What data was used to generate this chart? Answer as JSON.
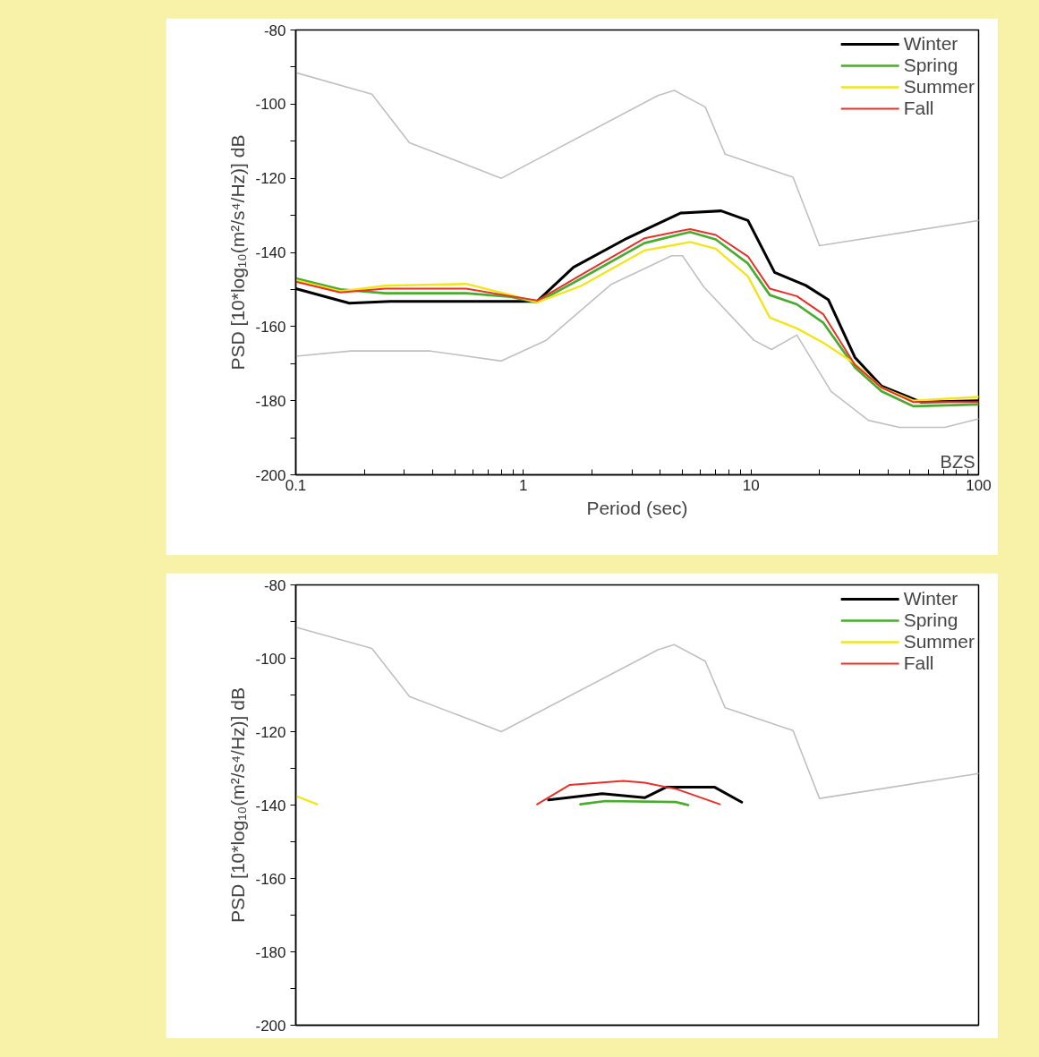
{
  "chart_data": [
    {
      "type": "line",
      "xlabel": "Period (sec)",
      "ylabel": "PSD [10*log₁₀(m²/s⁴/Hz)] dB",
      "log": "x",
      "xlim": [
        0.1,
        100
      ],
      "ylim": [
        -200,
        -80
      ],
      "xticks": [
        0.1,
        {
          "value": 0.2,
          "label": null
        },
        {
          "value": 0.3,
          "label": null
        },
        {
          "value": 0.4,
          "label": null
        },
        {
          "value": 0.5,
          "label": null
        },
        {
          "value": 0.6,
          "label": null
        },
        {
          "value": 0.7,
          "label": null
        },
        {
          "value": 0.8,
          "label": null
        },
        {
          "value": 0.9,
          "label": null
        },
        1,
        {
          "value": 2,
          "label": null
        },
        {
          "value": 3,
          "label": null
        },
        {
          "value": 4,
          "label": null
        },
        {
          "value": 5,
          "label": null
        },
        {
          "value": 6,
          "label": null
        },
        {
          "value": 7,
          "label": null
        },
        {
          "value": 8,
          "label": null
        },
        {
          "value": 9,
          "label": null
        },
        10,
        {
          "value": 20,
          "label": null
        },
        {
          "value": 30,
          "label": null
        },
        {
          "value": 40,
          "label": null
        },
        {
          "value": 50,
          "label": null
        },
        {
          "value": 60,
          "label": null
        },
        {
          "value": 70,
          "label": null
        },
        {
          "value": 80,
          "label": null
        },
        {
          "value": 90,
          "label": null
        },
        100
      ],
      "yticks": [
        -200,
        {
          "value": -190,
          "label": null
        },
        -180,
        {
          "value": -170,
          "label": null
        },
        -160,
        {
          "value": -150,
          "label": null
        },
        -140,
        {
          "value": -130,
          "label": null
        },
        -120,
        {
          "value": -110,
          "label": null
        },
        -100,
        {
          "value": -90,
          "label": null
        },
        -80
      ],
      "grid": false,
      "legend": "top right",
      "line_style": "solid",
      "annotations": [
        "BZS"
      ],
      "series": [
        {
          "color": "#c0c0c0",
          "x": [
            0.1,
            0.216,
            0.316,
            0.8,
            3.9,
            4.6,
            6.3,
            7.7,
            15.3,
            20,
            100
          ],
          "values": [
            -91.5,
            -97.3,
            -110.4,
            -120,
            -97.7,
            -96.3,
            -100.8,
            -113.5,
            -119.7,
            -138.2,
            -131.4
          ]
        },
        {
          "color": "#c0c0c0",
          "x": [
            0.1,
            0.175,
            0.39,
            0.8,
            1.26,
            2.42,
            4.48,
            5,
            6.2,
            10.3,
            12.3,
            15.9,
            22.5,
            32.8,
            44.9,
            71,
            100
          ],
          "values": [
            -168,
            -166.6,
            -166.6,
            -169.3,
            -163.7,
            -148.7,
            -140.9,
            -140.9,
            -149.3,
            -163.7,
            -166.2,
            -162.3,
            -177.5,
            -185.3,
            -187.2,
            -187.2,
            -184.9
          ]
        },
        {
          "name": "Winter",
          "color": "#000000",
          "x": [
            0.1,
            0.172,
            0.26,
            0.7,
            1.15,
            1.66,
            2.85,
            4.9,
            7.4,
            9.7,
            12.7,
            17.4,
            21.9,
            28.6,
            37.5,
            56,
            100
          ],
          "values": [
            -149.8,
            -153.7,
            -153.2,
            -153.2,
            -153.2,
            -144,
            -136.2,
            -129.4,
            -128.8,
            -131.4,
            -145.4,
            -148.9,
            -152.8,
            -168.3,
            -176.1,
            -180.4,
            -180
          ]
        },
        {
          "name": "Spring",
          "color": "#4aab2f",
          "x": [
            0.1,
            0.157,
            0.247,
            0.56,
            0.88,
            1.15,
            1.8,
            3.4,
            5.4,
            7,
            9.7,
            12.1,
            15.9,
            20.8,
            28.6,
            37.5,
            51.7,
            100
          ],
          "values": [
            -147,
            -150,
            -151,
            -151,
            -152,
            -153.5,
            -147,
            -137.5,
            -134.5,
            -136.5,
            -143,
            -151.5,
            -154,
            -159,
            -171,
            -177.5,
            -181.5,
            -181
          ]
        },
        {
          "name": "Summer",
          "color": "#f2e51c",
          "x": [
            0.1,
            0.157,
            0.247,
            0.56,
            0.88,
            1.15,
            1.8,
            3.4,
            5.4,
            7,
            9.7,
            12.1,
            15.9,
            20.8,
            28.6,
            37.5,
            51.7,
            100
          ],
          "values": [
            -147.5,
            -150.5,
            -149,
            -148.5,
            -151.5,
            -153.5,
            -149,
            -139.5,
            -137.2,
            -139,
            -146.5,
            -157.6,
            -160.5,
            -164.4,
            -170,
            -176.5,
            -180,
            -179
          ]
        },
        {
          "name": "Fall",
          "color": "#e8302a",
          "x": [
            0.1,
            0.157,
            0.247,
            0.56,
            0.88,
            1.15,
            1.8,
            3.4,
            5.4,
            7,
            9.7,
            12.1,
            15.9,
            20.8,
            28.6,
            37.5,
            51.7,
            100
          ],
          "values": [
            -147.9,
            -150.8,
            -149.8,
            -149.8,
            -151.8,
            -153,
            -146,
            -136.2,
            -133.7,
            -135.3,
            -141.1,
            -149.8,
            -151.8,
            -156.7,
            -170.3,
            -176.5,
            -180.4,
            -180.4
          ]
        }
      ]
    },
    {
      "type": "line",
      "ylabel": "PSD [10*log₁₀(m²/s⁴/Hz)] dB",
      "log": "x",
      "xlim": [
        0.1,
        100
      ],
      "ylim": [
        -200,
        -80
      ],
      "yticks": [
        -200,
        {
          "value": -190,
          "label": null
        },
        -180,
        {
          "value": -170,
          "label": null
        },
        -160,
        {
          "value": -150,
          "label": null
        },
        -140,
        {
          "value": -130,
          "label": null
        },
        -120,
        {
          "value": -110,
          "label": null
        },
        -100,
        {
          "value": -90,
          "label": null
        },
        -80
      ],
      "grid": false,
      "legend": "top right",
      "line_style": "solid",
      "series": [
        {
          "color": "#c0c0c0",
          "x": [
            0.1,
            0.216,
            0.316,
            0.8,
            3.9,
            4.6,
            6.3,
            7.7,
            15.3,
            20,
            100
          ],
          "values": [
            -91.5,
            -97.3,
            -110.4,
            -120,
            -97.7,
            -96.3,
            -100.8,
            -113.5,
            -119.7,
            -138.2,
            -131.4
          ]
        },
        {
          "name": "Winter",
          "color": "#000000",
          "x": [
            1.29,
            2.22,
            3.41,
            4.25,
            6.9,
            9.1
          ],
          "values": [
            -138.6,
            -136.9,
            -138,
            -135.1,
            -135.1,
            -139.2
          ]
        },
        {
          "name": "Spring",
          "color": "#4aab2f",
          "x": [
            1.78,
            2.3,
            4.7,
            5.3
          ],
          "values": [
            -139.8,
            -138.9,
            -139.2,
            -140
          ]
        },
        {
          "name": "Summer",
          "color": "#f2e51c",
          "x": [
            0.1,
            0.124
          ],
          "values": [
            -137.5,
            -139.8
          ]
        },
        {
          "name": "Fall",
          "color": "#e8302a",
          "x": [
            1.15,
            1.6,
            2.75,
            3.41,
            4.74,
            7.3
          ],
          "values": [
            -139.8,
            -134.5,
            -133.4,
            -133.9,
            -135.7,
            -139.8
          ]
        }
      ]
    }
  ]
}
